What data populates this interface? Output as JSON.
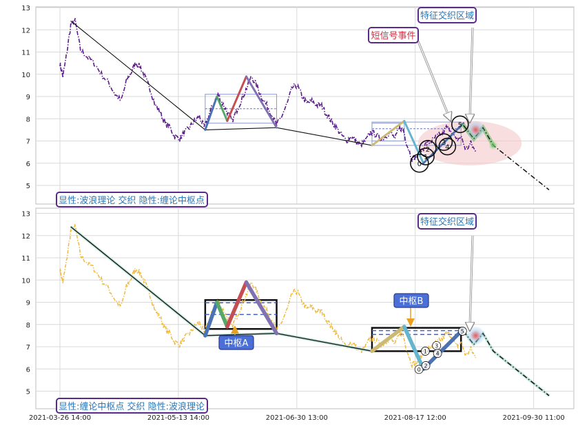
{
  "chart_data": {
    "type": "line",
    "x_ticks": [
      "2021-03-26 14:00",
      "2021-05-13 14:00",
      "2021-06-30 13:00",
      "2021-08-17 12:00",
      "2021-09-30 11:00"
    ],
    "x_range": [
      0,
      100
    ],
    "ylim": [
      4.5,
      13
    ],
    "y_ticks": [
      5,
      6,
      7,
      8,
      9,
      10,
      11,
      12,
      13
    ],
    "grid": true,
    "price_anchors": [
      [
        0,
        10.5
      ],
      [
        0.6,
        9.9
      ],
      [
        1.3,
        10.8
      ],
      [
        2.2,
        12.2
      ],
      [
        3.1,
        12.4
      ],
      [
        4.2,
        11.1
      ],
      [
        5.5,
        10.8
      ],
      [
        7,
        10.5
      ],
      [
        8.5,
        10.0
      ],
      [
        10,
        9.6
      ],
      [
        11.3,
        9.1
      ],
      [
        12.5,
        8.8
      ],
      [
        13.6,
        9.7
      ],
      [
        14.6,
        10.1
      ],
      [
        15.5,
        10.5
      ],
      [
        16.5,
        10.3
      ],
      [
        17.5,
        9.8
      ],
      [
        18.5,
        9.3
      ],
      [
        19.5,
        8.6
      ],
      [
        20.5,
        8.3
      ],
      [
        21.5,
        7.8
      ],
      [
        22.5,
        7.6
      ],
      [
        23.5,
        7.2
      ],
      [
        24.5,
        7.1
      ],
      [
        25.5,
        7.4
      ],
      [
        26.5,
        7.6
      ],
      [
        27.5,
        7.9
      ],
      [
        28.5,
        8.1
      ],
      [
        29.5,
        7.6
      ],
      [
        30.5,
        8.2
      ],
      [
        31.5,
        8.7
      ],
      [
        32.3,
        9.1
      ],
      [
        33.2,
        8.7
      ],
      [
        34.2,
        8.3
      ],
      [
        35.2,
        7.9
      ],
      [
        36.2,
        8.4
      ],
      [
        37.2,
        8.9
      ],
      [
        38.2,
        9.4
      ],
      [
        39.2,
        9.9
      ],
      [
        40.2,
        9.5
      ],
      [
        41.2,
        9.0
      ],
      [
        42.3,
        8.6
      ],
      [
        43.3,
        8.2
      ],
      [
        44.3,
        7.7
      ],
      [
        45.3,
        8.1
      ],
      [
        46.5,
        8.7
      ],
      [
        47.5,
        9.4
      ],
      [
        48.5,
        9.5
      ],
      [
        49.5,
        9.0
      ],
      [
        50.5,
        8.7
      ],
      [
        51.5,
        8.8
      ],
      [
        52.5,
        8.6
      ],
      [
        53.5,
        8.6
      ],
      [
        54.5,
        8.2
      ],
      [
        55.5,
        7.9
      ],
      [
        56.5,
        7.6
      ],
      [
        57.5,
        7.3
      ],
      [
        58.5,
        7.0
      ],
      [
        59.5,
        7.2
      ],
      [
        60.5,
        7.0
      ],
      [
        61.5,
        6.8
      ],
      [
        62.5,
        7.0
      ],
      [
        63.5,
        7.4
      ],
      [
        64.5,
        7.3
      ],
      [
        65.5,
        7.1
      ],
      [
        66.5,
        7.2
      ],
      [
        67.5,
        7.4
      ],
      [
        68.5,
        7.1
      ],
      [
        69.5,
        7.6
      ],
      [
        70.2,
        7.5
      ],
      [
        71,
        6.8
      ],
      [
        72,
        6.2
      ],
      [
        73,
        6.3
      ],
      [
        74,
        6.6
      ],
      [
        75,
        6.9
      ],
      [
        76,
        7.0
      ],
      [
        77,
        7.2
      ],
      [
        78,
        7.3
      ],
      [
        79,
        7.6
      ],
      [
        80,
        7.5
      ],
      [
        81,
        7.0
      ],
      [
        82,
        7.2
      ],
      [
        83,
        6.6
      ],
      [
        84,
        6.9
      ],
      [
        85,
        6.5
      ]
    ],
    "trend_line": [
      [
        2.2,
        12.4
      ],
      [
        29.7,
        7.5
      ],
      [
        44.3,
        7.6
      ],
      [
        63.8,
        6.8
      ]
    ],
    "strokes": [
      {
        "x": [
          29.7,
          32.1
        ],
        "y": [
          7.5,
          9.0
        ],
        "color": "#4a72b5"
      },
      {
        "x": [
          32.1,
          34.2
        ],
        "y": [
          9.0,
          7.9
        ],
        "color": "#55a868"
      },
      {
        "x": [
          34.2,
          38.1
        ],
        "y": [
          7.9,
          9.9
        ],
        "color": "#c44e52"
      },
      {
        "x": [
          38.1,
          44.3
        ],
        "y": [
          9.9,
          7.6
        ],
        "color": "#8172b2"
      },
      {
        "x": [
          63.8,
          70.4
        ],
        "y": [
          6.8,
          7.9
        ],
        "color": "#ccb974"
      },
      {
        "x": [
          70.4,
          74.3
        ],
        "y": [
          7.9,
          6.0
        ],
        "color": "#64b5cd"
      },
      {
        "x": [
          74.3,
          82.5
        ],
        "y": [
          6.0,
          7.8
        ],
        "color": "#4c72b0"
      }
    ],
    "projection": [
      [
        82.5,
        7.7
      ],
      [
        84.6,
        7.1
      ],
      [
        86.5,
        7.6
      ],
      [
        88.6,
        6.8
      ],
      [
        100,
        4.8
      ]
    ],
    "zhongshu_rects": [
      {
        "x": [
          29.7,
          44.3
        ],
        "y": [
          7.8,
          9.1
        ],
        "mid": 8.45
      },
      {
        "x": [
          63.8,
          82.0
        ],
        "y": [
          6.8,
          7.85
        ],
        "mid": 7.55
      }
    ],
    "small_rect": {
      "x": [
        63.8,
        70.4
      ],
      "y": [
        7.0,
        7.8
      ]
    },
    "highlight_ellipse": {
      "cx": 83.8,
      "cy": 6.9,
      "rx": 10.6,
      "ry": 1.0
    },
    "glow_points": [
      [
        82.5,
        7.7
      ],
      [
        85.0,
        7.5
      ],
      [
        88.6,
        6.8
      ]
    ],
    "top_markers": [
      {
        "x": 73.5,
        "y": 6.0,
        "r": 13,
        "label": "0"
      },
      {
        "x": 74.8,
        "y": 6.3,
        "r": 12,
        "label": "1"
      },
      {
        "x": 75.2,
        "y": 6.65,
        "r": 12,
        "label": "2"
      },
      {
        "x": 78.5,
        "y": 6.95,
        "r": 12,
        "label": "3"
      },
      {
        "x": 79.2,
        "y": 6.75,
        "r": 12,
        "label": "4"
      },
      {
        "x": 81.8,
        "y": 7.75,
        "r": 12,
        "label": "5"
      }
    ],
    "bottom_markers": [
      {
        "x": 73.4,
        "y": 5.98,
        "r": 6,
        "label": "0"
      },
      {
        "x": 74.8,
        "y": 6.15,
        "r": 6,
        "label": "2"
      },
      {
        "x": 74.7,
        "y": 6.8,
        "r": 6,
        "label": "1"
      },
      {
        "x": 77.0,
        "y": 7.05,
        "r": 6,
        "label": "3"
      },
      {
        "x": 77.2,
        "y": 6.7,
        "r": 6,
        "label": "4"
      },
      {
        "x": 82.3,
        "y": 7.7,
        "r": 6,
        "label": "5"
      }
    ],
    "colors": {
      "top_price": "#5b1a8c",
      "bottom_price": "#f0b93a",
      "trend": "#111111",
      "label_blue": "#2a76b8",
      "label_red": "#cc3344",
      "label_border": "#5a2a8a",
      "callout_fill": "#4a6fd6",
      "callout_border": "#2f3a8f",
      "arrow": "#e8a020",
      "ellipse": "#f4c8c8"
    }
  },
  "panels": {
    "top": {
      "legend": "显性:波浪理论 交织 隐性:缠论中枢点",
      "annotation_signal": "短信号事件",
      "annotation_feature": "特征交织区域"
    },
    "bottom": {
      "legend": "显性:缠论中枢点 交织 隐性:波浪理论",
      "annotation_feature": "特征交织区域",
      "callout_a": "中枢A",
      "callout_b": "中枢B"
    }
  }
}
